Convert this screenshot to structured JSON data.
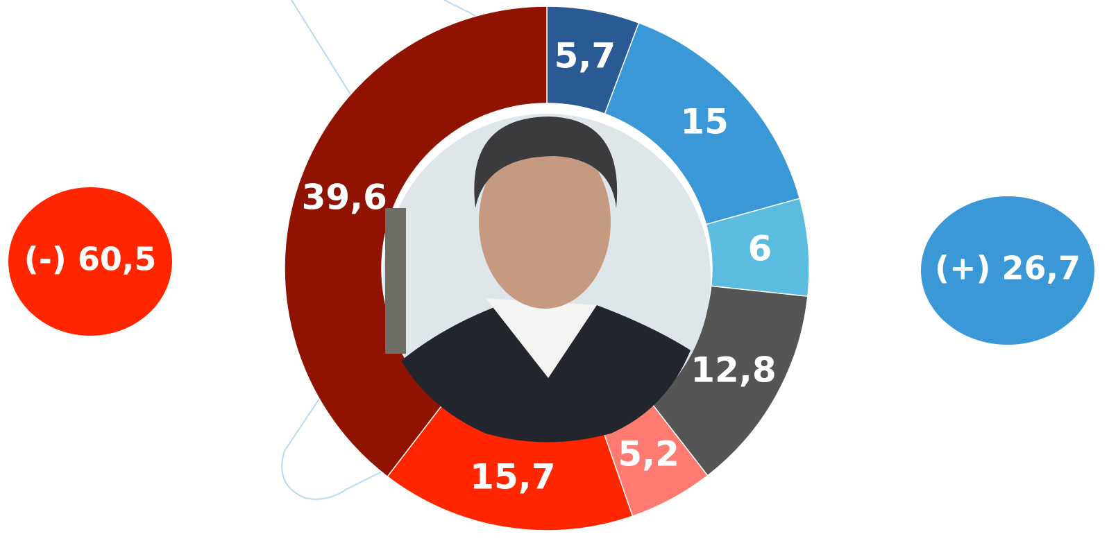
{
  "chart_data": {
    "type": "donut",
    "values": [
      5.7,
      15,
      6,
      12.8,
      5.2,
      15.7,
      39.6
    ],
    "value_labels": [
      "5,7",
      "15",
      "6",
      "12,8",
      "5,2",
      "15,7",
      "39,6"
    ],
    "colors": [
      "#2a5a93",
      "#3a98d6",
      "#5bbcdf",
      "#555555",
      "#ff7b72",
      "#ff2600",
      "#8f1300"
    ],
    "annotations": [
      {
        "text": "(-) 60,5",
        "color": "#ff2600"
      },
      {
        "text": "(+) 26,7",
        "color": "#3a98d6"
      }
    ]
  }
}
